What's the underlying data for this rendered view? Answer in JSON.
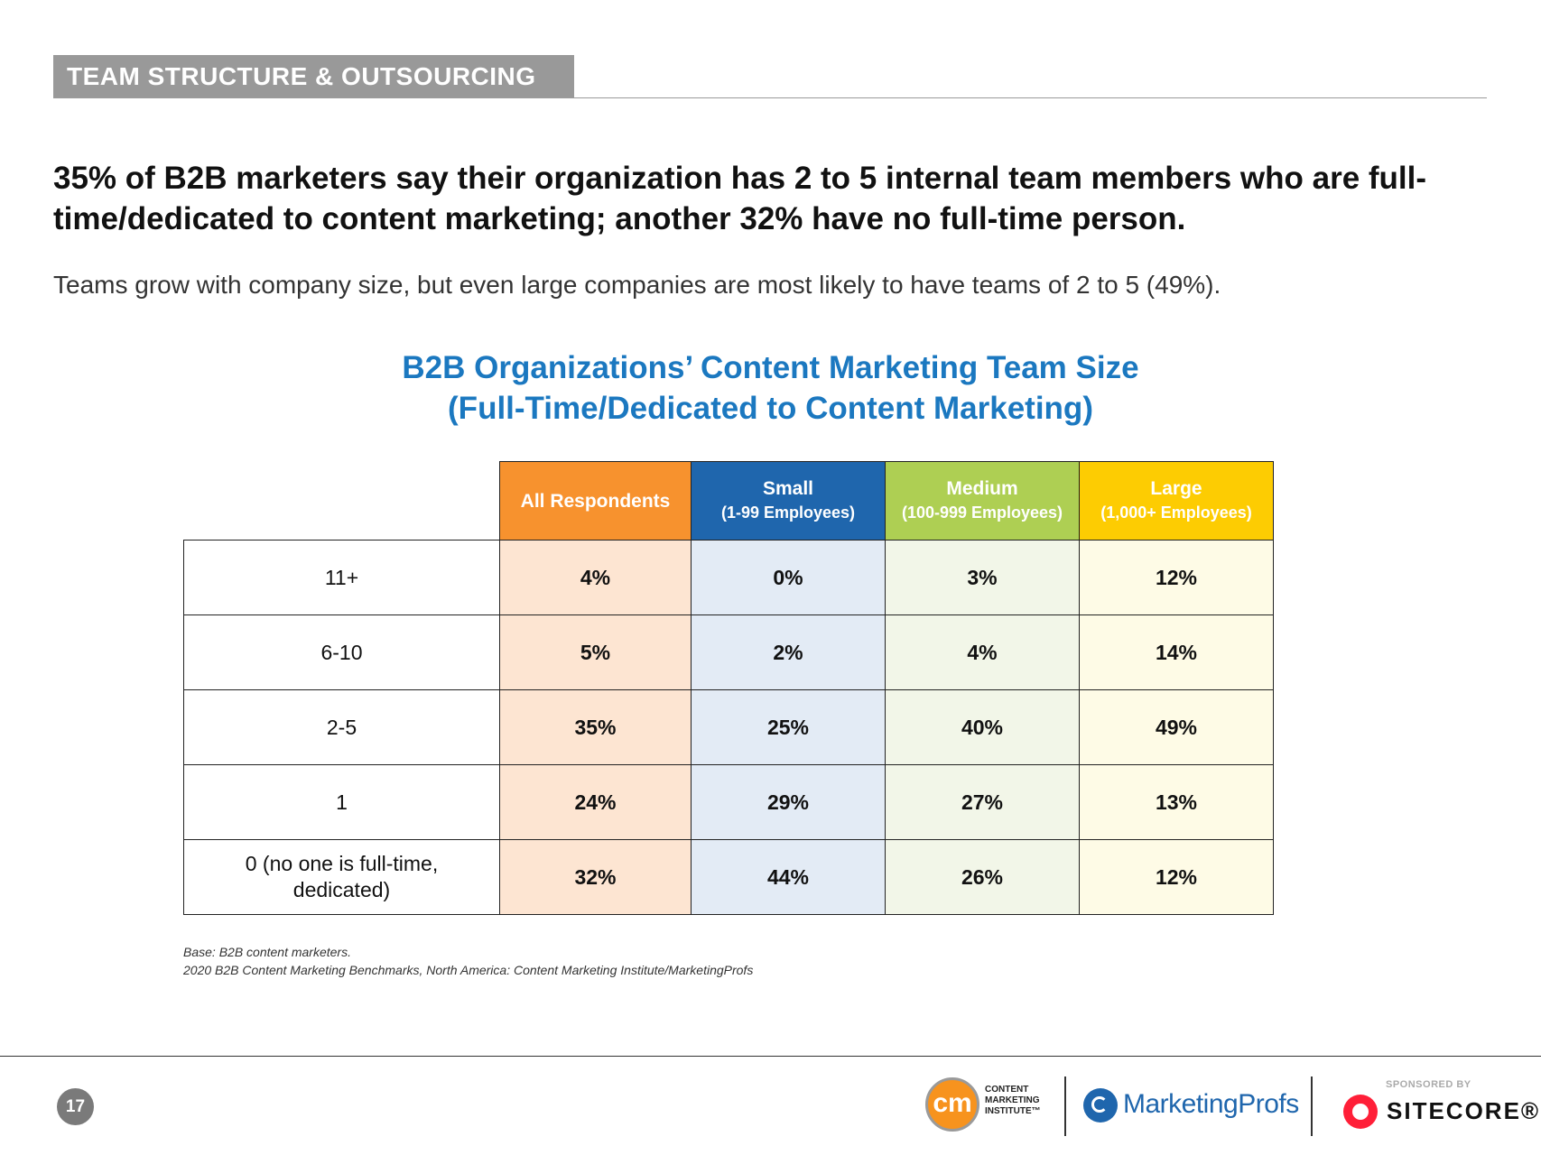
{
  "section": {
    "tag": "TEAM STRUCTURE & OUTSOURCING"
  },
  "headline": "35% of B2B marketers say their organization has 2 to 5 internal team members who are full-time/dedicated to content marketing; another 32% have no full-time person.",
  "subhead": "Teams grow with company size, but even large companies are most likely to have teams of 2 to 5 (49%).",
  "chart_data": {
    "type": "table",
    "title": "B2B Organizations’ Content Marketing Team Size",
    "subtitle": "(Full-Time/Dedicated to Content Marketing)",
    "columns": [
      {
        "name": "All Respondents",
        "sub": "",
        "color": "#f7922e"
      },
      {
        "name": "Small",
        "sub": "(1-99 Employees)",
        "color": "#1f66ad"
      },
      {
        "name": "Medium",
        "sub": "(100-999 Employees)",
        "color": "#aecf53"
      },
      {
        "name": "Large",
        "sub": "(1,000+ Employees)",
        "color": "#fdcc02"
      }
    ],
    "rows": [
      {
        "label": "11+",
        "values": [
          "4%",
          "0%",
          "3%",
          "12%"
        ]
      },
      {
        "label": "6-10",
        "values": [
          "5%",
          "2%",
          "4%",
          "14%"
        ]
      },
      {
        "label": "2-5",
        "values": [
          "35%",
          "25%",
          "40%",
          "49%"
        ]
      },
      {
        "label": "1",
        "values": [
          "24%",
          "29%",
          "27%",
          "13%"
        ]
      },
      {
        "label": "0 (no one is full-time, dedicated)",
        "values": [
          "32%",
          "44%",
          "26%",
          "12%"
        ]
      }
    ]
  },
  "footnotes": {
    "base": "Base: B2B content marketers.",
    "source": "2020 B2B Content Marketing Benchmarks, North America: Content Marketing Institute/MarketingProfs"
  },
  "footer": {
    "page_number": "17",
    "cmi_mark": "cm",
    "cmi_lines": [
      "CONTENT",
      "MARKETING",
      "INSTITUTE™"
    ],
    "marketingprofs": "MarketingProfs",
    "sponsored_by": "SPONSORED BY",
    "sitecore": "SITECORE®"
  }
}
